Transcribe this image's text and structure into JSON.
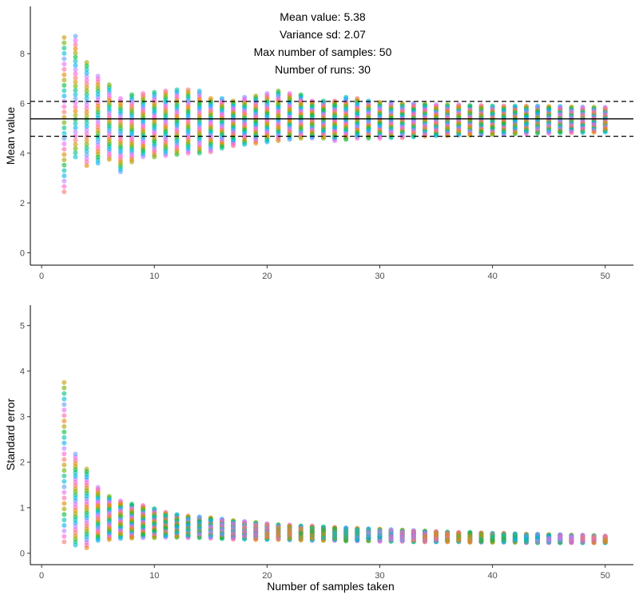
{
  "chart_data": [
    {
      "type": "scatter",
      "panel": "top",
      "xlabel": "",
      "ylabel": "Mean value",
      "xlim": [
        -1,
        52.5
      ],
      "ylim": [
        -0.5,
        9.9
      ],
      "x_ticks": [
        0,
        10,
        20,
        30,
        40,
        50
      ],
      "y_ticks": [
        0,
        2,
        4,
        6,
        8
      ],
      "annotations": [
        "Mean value: 5.38",
        "Variance sd: 2.07",
        "Max number of samples: 50",
        "Number of runs: 30"
      ],
      "hlines": [
        {
          "y": 5.38,
          "style": "solid"
        },
        {
          "y": 6.08,
          "style": "dashed"
        },
        {
          "y": 4.68,
          "style": "dashed"
        }
      ],
      "n_runs": 30,
      "x_values": [
        2,
        3,
        4,
        5,
        6,
        7,
        8,
        9,
        10,
        11,
        12,
        13,
        14,
        15,
        16,
        17,
        18,
        19,
        20,
        21,
        22,
        23,
        24,
        25,
        26,
        27,
        28,
        29,
        30,
        31,
        32,
        33,
        34,
        35,
        36,
        37,
        38,
        39,
        40,
        41,
        42,
        43,
        44,
        45,
        46,
        47,
        48,
        49,
        50
      ],
      "y_min": [
        2.45,
        3.85,
        3.5,
        3.6,
        3.75,
        3.25,
        3.65,
        3.85,
        3.85,
        3.9,
        3.95,
        4.0,
        4.0,
        4.05,
        4.2,
        4.3,
        4.35,
        4.4,
        4.45,
        4.5,
        4.55,
        4.6,
        4.6,
        4.6,
        4.5,
        4.55,
        4.6,
        4.6,
        4.6,
        4.62,
        4.62,
        4.65,
        4.68,
        4.7,
        4.7,
        4.72,
        4.72,
        4.74,
        4.75,
        4.76,
        4.78,
        4.78,
        4.8,
        4.8,
        4.82,
        4.82,
        4.83,
        4.84,
        4.85
      ],
      "y_max": [
        8.65,
        8.7,
        7.65,
        7.1,
        6.75,
        6.2,
        6.35,
        6.4,
        6.45,
        6.5,
        6.55,
        6.55,
        6.5,
        6.2,
        6.2,
        6.1,
        6.25,
        6.3,
        6.4,
        6.5,
        6.4,
        6.35,
        6.1,
        6.1,
        6.1,
        6.25,
        6.2,
        6.1,
        6.05,
        6.05,
        6.0,
        6.0,
        5.98,
        5.95,
        5.95,
        5.95,
        5.92,
        5.92,
        5.9,
        5.9,
        5.9,
        5.9,
        5.9,
        5.88,
        5.88,
        5.86,
        5.86,
        5.85,
        5.85
      ]
    },
    {
      "type": "scatter",
      "panel": "bottom",
      "xlabel": "Number of samples taken",
      "ylabel": "Standard error",
      "xlim": [
        -1,
        52.5
      ],
      "ylim": [
        -0.25,
        5.45
      ],
      "x_ticks": [
        0,
        10,
        20,
        30,
        40,
        50
      ],
      "y_ticks": [
        0,
        1,
        2,
        3,
        4,
        5
      ],
      "n_runs": 30,
      "x_values": [
        2,
        3,
        4,
        5,
        6,
        7,
        8,
        9,
        10,
        11,
        12,
        13,
        14,
        15,
        16,
        17,
        18,
        19,
        20,
        21,
        22,
        23,
        24,
        25,
        26,
        27,
        28,
        29,
        30,
        31,
        32,
        33,
        34,
        35,
        36,
        37,
        38,
        39,
        40,
        41,
        42,
        43,
        44,
        45,
        46,
        47,
        48,
        49,
        50
      ],
      "y_min": [
        0.25,
        0.18,
        0.12,
        0.28,
        0.3,
        0.32,
        0.33,
        0.34,
        0.34,
        0.35,
        0.35,
        0.34,
        0.34,
        0.33,
        0.32,
        0.31,
        0.31,
        0.3,
        0.3,
        0.3,
        0.29,
        0.29,
        0.28,
        0.28,
        0.28,
        0.27,
        0.27,
        0.27,
        0.26,
        0.26,
        0.26,
        0.25,
        0.25,
        0.25,
        0.25,
        0.25,
        0.24,
        0.24,
        0.24,
        0.24,
        0.24,
        0.23,
        0.23,
        0.23,
        0.23,
        0.23,
        0.23,
        0.23,
        0.23
      ],
      "y_max": [
        3.75,
        2.18,
        1.85,
        1.45,
        1.25,
        1.15,
        1.08,
        1.05,
        0.98,
        0.9,
        0.85,
        0.82,
        0.8,
        0.78,
        0.75,
        0.72,
        0.7,
        0.68,
        0.65,
        0.63,
        0.62,
        0.6,
        0.6,
        0.58,
        0.57,
        0.56,
        0.55,
        0.54,
        0.53,
        0.52,
        0.51,
        0.5,
        0.49,
        0.48,
        0.47,
        0.46,
        0.46,
        0.45,
        0.44,
        0.44,
        0.43,
        0.42,
        0.42,
        0.41,
        0.41,
        0.4,
        0.4,
        0.39,
        0.38
      ]
    }
  ],
  "series_colors": [
    "#F8766D",
    "#E58700",
    "#C99800",
    "#A3A500",
    "#6BB100",
    "#00BA38",
    "#00BF7D",
    "#00C0AF",
    "#00BCD8",
    "#00B0F6",
    "#619CFF",
    "#B983FF",
    "#E76BF3",
    "#FD61D1",
    "#FF67A4"
  ],
  "reference_line_color": "#000000"
}
